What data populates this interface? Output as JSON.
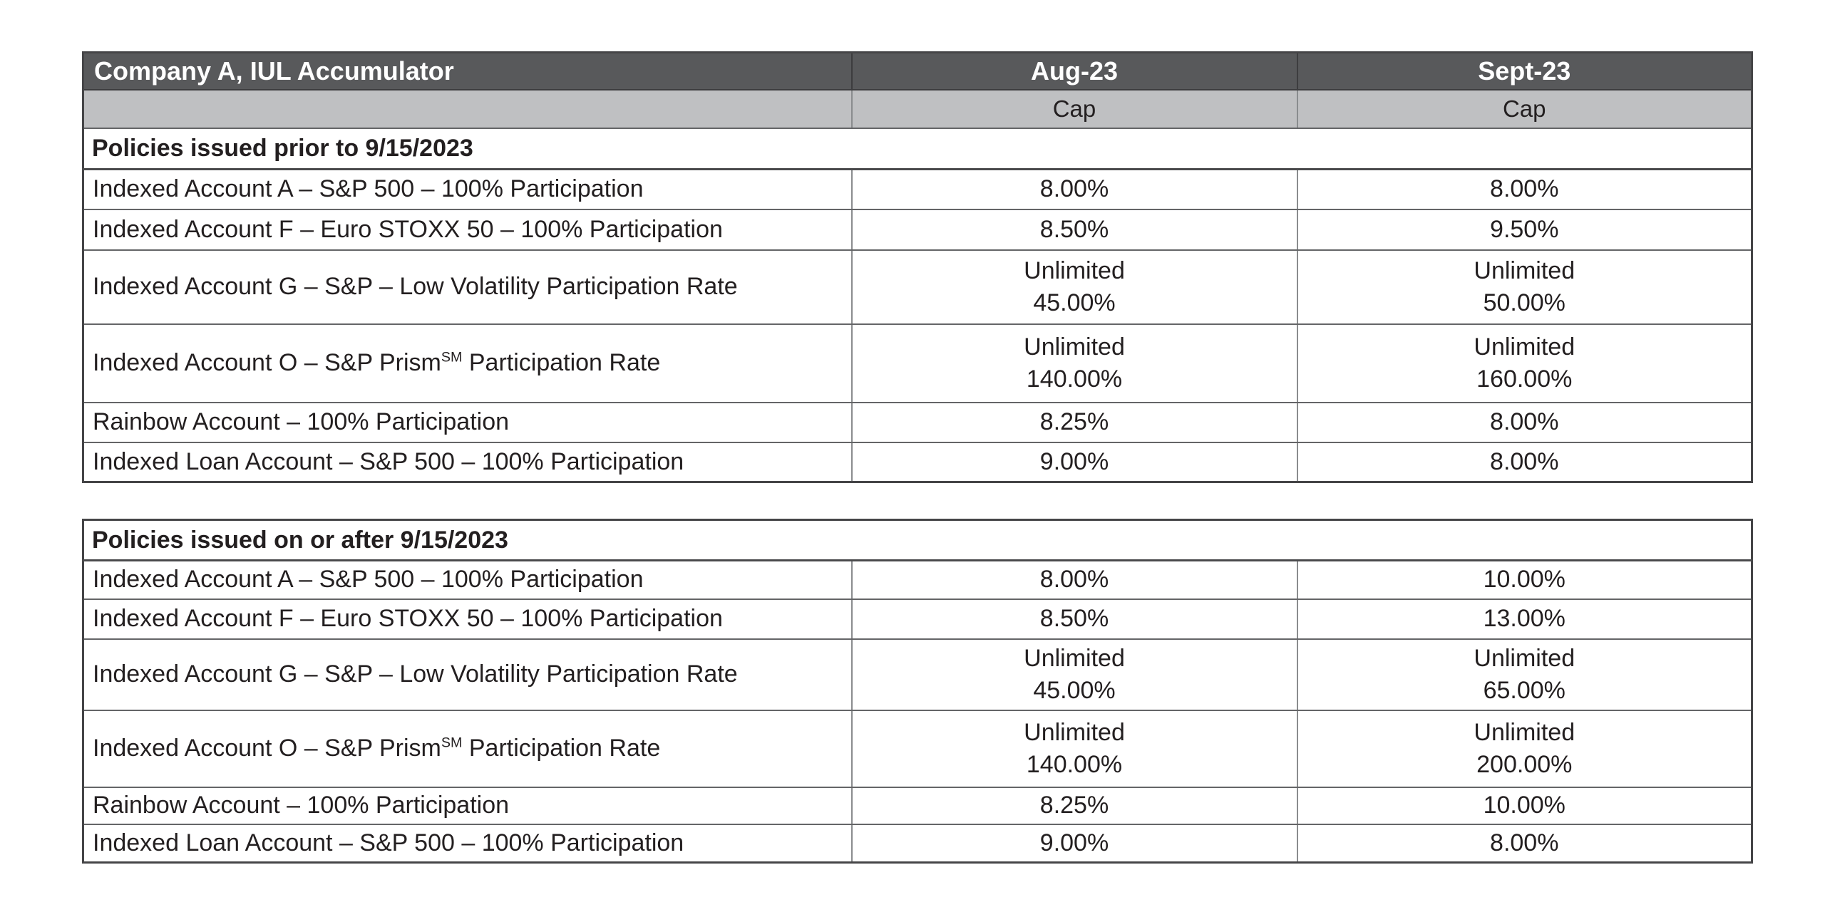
{
  "table": {
    "header": {
      "title": "Company A, IUL Accumulator",
      "col_aug": "Aug-23",
      "col_sept": "Sept-23",
      "sub_label": "Cap"
    },
    "colors": {
      "header_bg": "#58595b",
      "header_text": "#ffffff",
      "subheader_bg": "#bfc0c2",
      "body_text": "#231f20",
      "grid_line": "#8a8c8e",
      "strong_line": "#4a4a4c"
    },
    "sections": [
      {
        "title": "Policies issued prior to 9/15/2023",
        "rows": [
          {
            "label": [
              "Indexed Account A – S&P 500 – 100% Participation"
            ],
            "aug": [
              "8.00%"
            ],
            "sept": [
              "8.00%"
            ]
          },
          {
            "label": [
              "Indexed Account F – Euro STOXX 50 – 100% Participation"
            ],
            "aug": [
              "8.50%"
            ],
            "sept": [
              "9.50%"
            ]
          },
          {
            "label": [
              "Indexed Account G – S&P – Low Volatility Participation Rate"
            ],
            "aug": [
              "Unlimited",
              "45.00%"
            ],
            "sept": [
              "Unlimited",
              "50.00%"
            ]
          },
          {
            "label": [
              "Indexed Account O – S&P Prism",
              {
                "sup": "SM"
              },
              " Participation Rate"
            ],
            "aug": [
              "Unlimited",
              "140.00%"
            ],
            "sept": [
              "Unlimited",
              "160.00%"
            ]
          },
          {
            "label": [
              "Rainbow Account – 100% Participation"
            ],
            "aug": [
              "8.25%"
            ],
            "sept": [
              "8.00%"
            ]
          },
          {
            "label": [
              "Indexed Loan Account – S&P 500 – 100% Participation"
            ],
            "aug": [
              "9.00%"
            ],
            "sept": [
              "8.00%"
            ]
          }
        ]
      },
      {
        "title": "Policies issued on or after 9/15/2023",
        "rows": [
          {
            "label": [
              "Indexed Account A – S&P 500 – 100% Participation"
            ],
            "aug": [
              "8.00%"
            ],
            "sept": [
              "10.00%"
            ]
          },
          {
            "label": [
              "Indexed Account F – Euro STOXX 50 – 100% Participation"
            ],
            "aug": [
              "8.50%"
            ],
            "sept": [
              "13.00%"
            ]
          },
          {
            "label": [
              "Indexed Account G – S&P – Low Volatility Participation Rate"
            ],
            "aug": [
              "Unlimited",
              "45.00%"
            ],
            "sept": [
              "Unlimited",
              "65.00%"
            ]
          },
          {
            "label": [
              "Indexed Account O – S&P Prism",
              {
                "sup": "SM"
              },
              " Participation Rate"
            ],
            "aug": [
              "Unlimited",
              "140.00%"
            ],
            "sept": [
              "Unlimited",
              "200.00%"
            ]
          },
          {
            "label": [
              "Rainbow Account – 100% Participation"
            ],
            "aug": [
              "8.25%"
            ],
            "sept": [
              "10.00%"
            ]
          },
          {
            "label": [
              "Indexed Loan Account – S&P 500 – 100% Participation"
            ],
            "aug": [
              "9.00%"
            ],
            "sept": [
              "8.00%"
            ]
          }
        ]
      }
    ]
  }
}
